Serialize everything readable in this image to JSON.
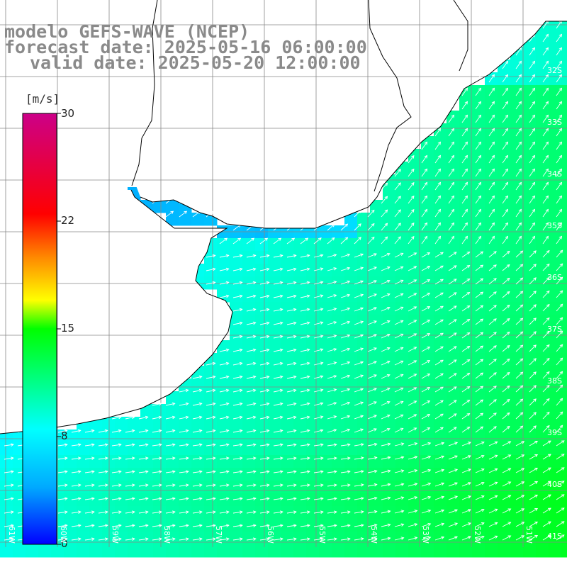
{
  "title": {
    "line1": "modelo GEFS-WAVE (NCEP)",
    "line2": "forecast date: 2025-05-16 06:00:00",
    "line3": "valid date: 2025-05-20 12:00:00"
  },
  "colorbar": {
    "unit": "[m/s]",
    "ticks": [
      "30",
      "22",
      "15",
      "8",
      "0"
    ],
    "min": 0,
    "max": 30,
    "stops": [
      "#0000ff",
      "#00aaff",
      "#00ffff",
      "#00ff00",
      "#ffff00",
      "#ff8800",
      "#ff0000",
      "#cc0088"
    ]
  },
  "map": {
    "lat_labels": [
      "32S",
      "33S",
      "34S",
      "35S",
      "36S",
      "37S",
      "38S",
      "39S",
      "40S",
      "41S"
    ],
    "lon_labels": [
      "61W",
      "60W",
      "59W",
      "58W",
      "57W",
      "56W",
      "55W",
      "54W",
      "53W",
      "52W",
      "51W"
    ],
    "land_color": "#ffffff",
    "coastline_color": "#000000",
    "grid_color": "#888888",
    "arrow_color": "#ffffff"
  }
}
